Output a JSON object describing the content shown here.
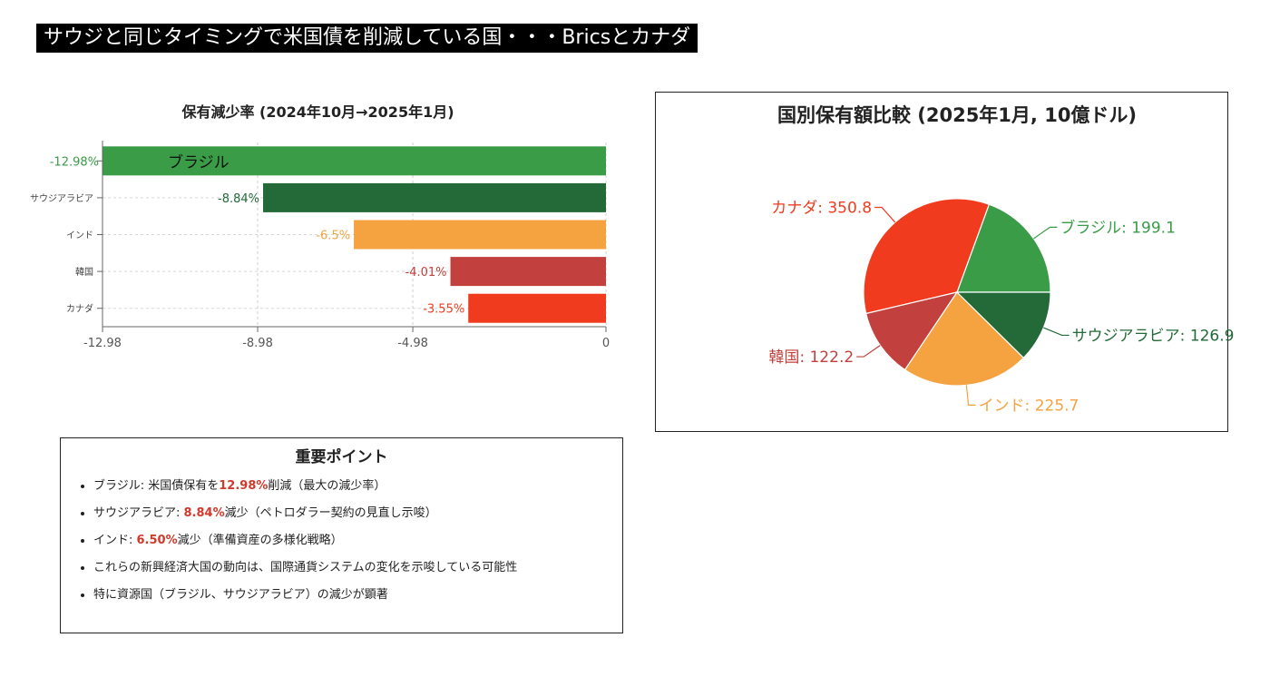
{
  "banner": {
    "title": "サウジと同じタイミングで米国債を削減している国・・・Bricsとカナダ"
  },
  "chart_data": [
    {
      "type": "bar",
      "orientation": "horizontal",
      "title": "保有減少率 (2024年10月→2025年1月)",
      "categories": [
        "ブラジル",
        "サウジアラビア",
        "インド",
        "韓国",
        "カナダ"
      ],
      "values": [
        -12.98,
        -8.84,
        -6.5,
        -4.01,
        -3.55
      ],
      "data_labels": [
        "-12.98%",
        "-8.84%",
        "-6.5%",
        "-4.01%",
        "-3.55%"
      ],
      "colors": [
        "#3a9c47",
        "#236a38",
        "#f4a340",
        "#c2403d",
        "#f03b1e"
      ],
      "xticks": [
        "-12.98",
        "-8.98",
        "-4.98",
        "0"
      ],
      "xlim": [
        -12.98,
        0
      ],
      "grid": true,
      "highlighted_label": "ブラジル"
    },
    {
      "type": "pie",
      "title": "国別保有額比較 (2025年1月, 10億ドル)",
      "slices": [
        {
          "label": "ブラジル",
          "value": 199.1,
          "text": "ブラジル: 199.1",
          "color": "#3a9c47"
        },
        {
          "label": "カナダ",
          "value": 350.8,
          "text": "カナダ: 350.8",
          "color": "#f03b1e"
        },
        {
          "label": "韓国",
          "value": 122.2,
          "text": "韓国: 122.2",
          "color": "#c2403d"
        },
        {
          "label": "インド",
          "value": 225.7,
          "text": "インド: 225.7",
          "color": "#f4a340"
        },
        {
          "label": "サウジアラビア",
          "value": 126.9,
          "text": "サウジアラビア: 126.9",
          "color": "#236a38"
        }
      ]
    }
  ],
  "points": {
    "title": "重要ポイント",
    "items": [
      {
        "pre": "ブラジル: 米国債保有を",
        "hl": "12.98%",
        "post": "削減（最大の減少率）"
      },
      {
        "pre": "サウジアラビア: ",
        "hl": "8.84%",
        "post": "減少（ペトロダラー契約の見直し示唆）"
      },
      {
        "pre": "インド: ",
        "hl": "6.50%",
        "post": "減少（準備資産の多様化戦略）"
      },
      {
        "pre": "これらの新興経済大国の動向は、国際通貨システムの変化を示唆している可能性",
        "hl": "",
        "post": ""
      },
      {
        "pre": "特に資源国（ブラジル、サウジアラビア）の減少が顕著",
        "hl": "",
        "post": ""
      }
    ]
  }
}
